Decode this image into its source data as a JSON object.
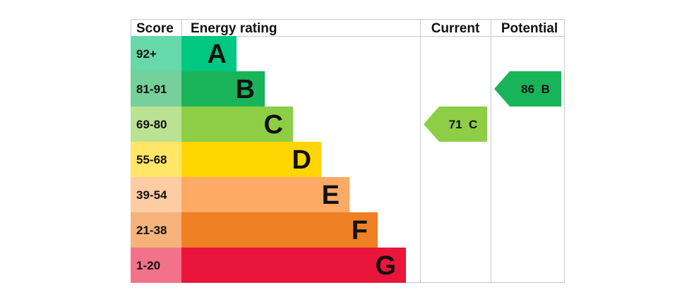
{
  "chart_data": {
    "type": "bar",
    "headers": {
      "score": "Score",
      "rating": "Energy rating",
      "current": "Current",
      "potential": "Potential"
    },
    "bands": [
      {
        "score": "92+",
        "letter": "A",
        "bar_color": "#00c781",
        "score_color": "#66d8a9"
      },
      {
        "score": "81-91",
        "letter": "B",
        "bar_color": "#19b459",
        "score_color": "#75d09b"
      },
      {
        "score": "69-80",
        "letter": "C",
        "bar_color": "#8dce46",
        "score_color": "#bbe293"
      },
      {
        "score": "55-68",
        "letter": "D",
        "bar_color": "#ffd500",
        "score_color": "#ffe666"
      },
      {
        "score": "39-54",
        "letter": "E",
        "bar_color": "#fcaa65",
        "score_color": "#fdcca3"
      },
      {
        "score": "21-38",
        "letter": "F",
        "bar_color": "#ef8023",
        "score_color": "#f5b37b"
      },
      {
        "score": "1-20",
        "letter": "G",
        "bar_color": "#e9153b",
        "score_color": "#f27389"
      }
    ],
    "current": {
      "value": 71,
      "band": "C",
      "label": "71 C",
      "color": "#8dce46"
    },
    "potential": {
      "value": 86,
      "band": "B",
      "label": "86 B",
      "color": "#19b459"
    }
  }
}
